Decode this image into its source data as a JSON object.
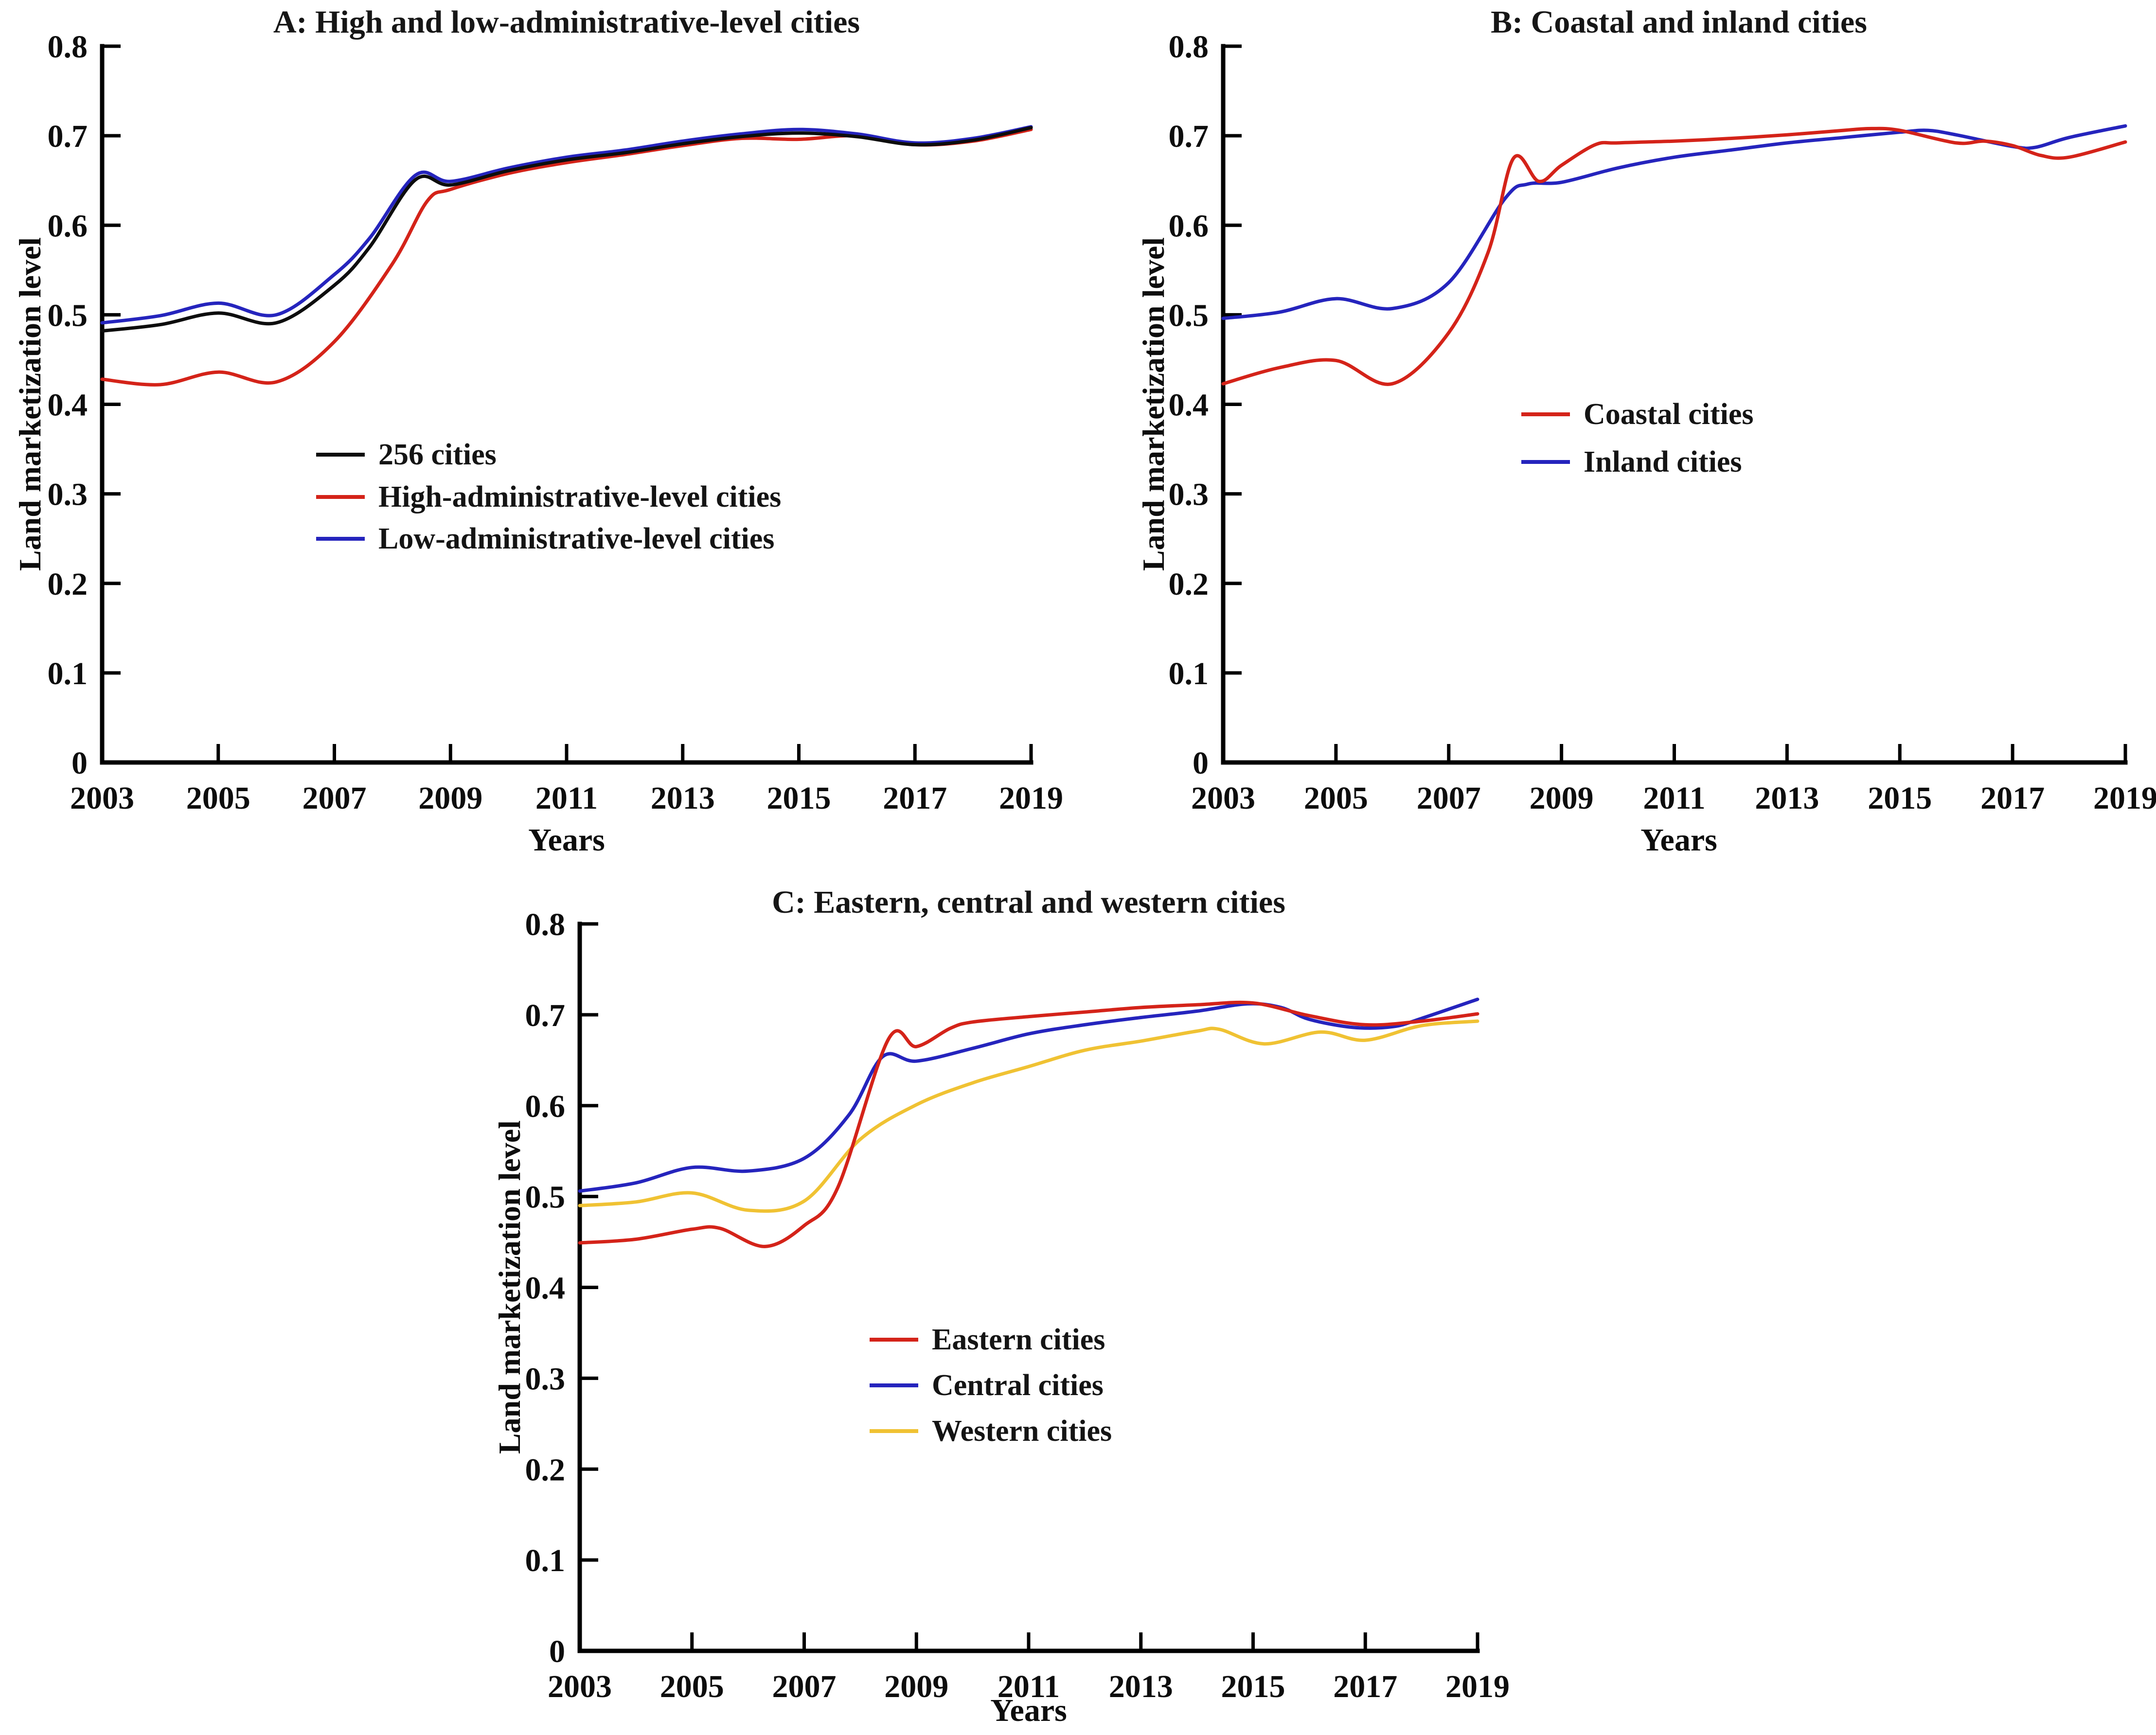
{
  "figure": {
    "background": "#ffffff",
    "axis_color": "#000000",
    "x_axis_label": "Years",
    "y_axis_label": "Land marketization level"
  },
  "chart_data": [
    {
      "type": "line",
      "panel": "A",
      "title": "A: High and low-administrative-level cities",
      "xlabel": "Years",
      "ylabel": "Land marketization level",
      "xlim": [
        2003,
        2019
      ],
      "ylim": [
        0,
        0.8
      ],
      "grid": false,
      "legend_position": "center-left",
      "x_ticks": [
        2003,
        2005,
        2007,
        2009,
        2011,
        2013,
        2015,
        2017,
        2019
      ],
      "x_tick_labels": [
        "2003",
        "2005",
        "2007",
        "2009",
        "2011",
        "2013",
        "2015",
        "2017",
        "2019"
      ],
      "y_ticks": [
        0,
        0.1,
        0.2,
        0.3,
        0.4,
        0.5,
        0.6,
        0.7,
        0.8
      ],
      "y_tick_labels": [
        "0",
        "0.1",
        "0.2",
        "0.3",
        "0.4",
        "0.5",
        "0.6",
        "0.7",
        "0.8"
      ],
      "series": [
        {
          "name": "256 cities",
          "color": "#0d0d0d",
          "points": [
            [
              2003,
              0.482
            ],
            [
              2004,
              0.489
            ],
            [
              2005,
              0.502
            ],
            [
              2006,
              0.491
            ],
            [
              2007,
              0.533
            ],
            [
              2007.6,
              0.575
            ],
            [
              2008.4,
              0.651
            ],
            [
              2009,
              0.645
            ],
            [
              2010,
              0.661
            ],
            [
              2011,
              0.673
            ],
            [
              2012,
              0.681
            ],
            [
              2013,
              0.691
            ],
            [
              2014,
              0.699
            ],
            [
              2015,
              0.703
            ],
            [
              2016,
              0.699
            ],
            [
              2017,
              0.69
            ],
            [
              2018,
              0.695
            ],
            [
              2019,
              0.709
            ]
          ]
        },
        {
          "name": "High-administrative-level cities",
          "color": "#d42319",
          "points": [
            [
              2003,
              0.428
            ],
            [
              2004,
              0.422
            ],
            [
              2005,
              0.436
            ],
            [
              2006,
              0.425
            ],
            [
              2007,
              0.47
            ],
            [
              2008,
              0.557
            ],
            [
              2008.6,
              0.627
            ],
            [
              2009,
              0.64
            ],
            [
              2010,
              0.658
            ],
            [
              2011,
              0.67
            ],
            [
              2012,
              0.679
            ],
            [
              2013,
              0.689
            ],
            [
              2014,
              0.697
            ],
            [
              2015,
              0.696
            ],
            [
              2016,
              0.7
            ],
            [
              2017,
              0.69
            ],
            [
              2018,
              0.694
            ],
            [
              2019,
              0.707
            ]
          ]
        },
        {
          "name": "Low-administrative-level cities",
          "color": "#2524bd",
          "points": [
            [
              2003,
              0.491
            ],
            [
              2004,
              0.499
            ],
            [
              2005,
              0.513
            ],
            [
              2006,
              0.5
            ],
            [
              2007,
              0.545
            ],
            [
              2007.6,
              0.585
            ],
            [
              2008.4,
              0.656
            ],
            [
              2009,
              0.649
            ],
            [
              2010,
              0.664
            ],
            [
              2011,
              0.676
            ],
            [
              2012,
              0.684
            ],
            [
              2013,
              0.694
            ],
            [
              2014,
              0.702
            ],
            [
              2015,
              0.707
            ],
            [
              2016,
              0.702
            ],
            [
              2017,
              0.692
            ],
            [
              2018,
              0.697
            ],
            [
              2019,
              0.71
            ]
          ]
        }
      ]
    },
    {
      "type": "line",
      "panel": "B",
      "title": "B: Coastal and inland cities",
      "xlabel": "Years",
      "ylabel": "Land marketization level",
      "xlim": [
        2003,
        2019
      ],
      "ylim": [
        0,
        0.8
      ],
      "grid": false,
      "legend_position": "center-left",
      "x_ticks": [
        2003,
        2005,
        2007,
        2009,
        2011,
        2013,
        2015,
        2017,
        2019
      ],
      "x_tick_labels": [
        "2003",
        "2005",
        "2007",
        "2009",
        "2011",
        "2013",
        "2015",
        "2017",
        "2019"
      ],
      "y_ticks": [
        0,
        0.1,
        0.2,
        0.3,
        0.4,
        0.5,
        0.6,
        0.7,
        0.8
      ],
      "y_tick_labels": [
        "0",
        "0.1",
        "0.2",
        "0.3",
        "0.4",
        "0.5",
        "0.6",
        "0.7",
        "0.8"
      ],
      "series": [
        {
          "name": "Coastal cities",
          "color": "#d42319",
          "points": [
            [
              2003,
              0.423
            ],
            [
              2004,
              0.441
            ],
            [
              2005,
              0.449
            ],
            [
              2006,
              0.423
            ],
            [
              2007,
              0.48
            ],
            [
              2007.7,
              0.57
            ],
            [
              2008.15,
              0.675
            ],
            [
              2008.6,
              0.649
            ],
            [
              2009,
              0.667
            ],
            [
              2009.6,
              0.69
            ],
            [
              2010,
              0.692
            ],
            [
              2011,
              0.694
            ],
            [
              2012,
              0.697
            ],
            [
              2013,
              0.701
            ],
            [
              2014,
              0.706
            ],
            [
              2014.5,
              0.708
            ],
            [
              2015,
              0.706
            ],
            [
              2016,
              0.692
            ],
            [
              2016.5,
              0.694
            ],
            [
              2017,
              0.689
            ],
            [
              2017.5,
              0.678
            ],
            [
              2018,
              0.676
            ],
            [
              2019,
              0.693
            ]
          ]
        },
        {
          "name": "Inland cities",
          "color": "#2524bd",
          "points": [
            [
              2003,
              0.496
            ],
            [
              2004,
              0.503
            ],
            [
              2005,
              0.518
            ],
            [
              2006,
              0.507
            ],
            [
              2007,
              0.536
            ],
            [
              2008,
              0.63
            ],
            [
              2008.4,
              0.646
            ],
            [
              2009,
              0.648
            ],
            [
              2010,
              0.664
            ],
            [
              2011,
              0.676
            ],
            [
              2012,
              0.684
            ],
            [
              2013,
              0.692
            ],
            [
              2014,
              0.698
            ],
            [
              2015,
              0.704
            ],
            [
              2015.5,
              0.706
            ],
            [
              2016,
              0.701
            ],
            [
              2017,
              0.688
            ],
            [
              2017.4,
              0.687
            ],
            [
              2018,
              0.698
            ],
            [
              2019,
              0.711
            ]
          ]
        }
      ]
    },
    {
      "type": "line",
      "panel": "C",
      "title": "C: Eastern, central and western cities",
      "xlabel": "Years",
      "ylabel": "Land marketization level",
      "xlim": [
        2003,
        2019
      ],
      "ylim": [
        0,
        0.8
      ],
      "grid": false,
      "legend_position": "center-left",
      "x_ticks": [
        2003,
        2005,
        2007,
        2009,
        2011,
        2013,
        2015,
        2017,
        2019
      ],
      "x_tick_labels": [
        "2003",
        "2005",
        "2007",
        "2009",
        "2011",
        "2013",
        "2015",
        "2017",
        "2019"
      ],
      "y_ticks": [
        0,
        0.1,
        0.2,
        0.3,
        0.4,
        0.5,
        0.6,
        0.7,
        0.8
      ],
      "y_tick_labels": [
        "0",
        "0.1",
        "0.2",
        "0.3",
        "0.4",
        "0.5",
        "0.6",
        "0.7",
        "0.8"
      ],
      "series": [
        {
          "name": "Eastern cities",
          "color": "#d42319",
          "points": [
            [
              2003,
              0.449
            ],
            [
              2004,
              0.453
            ],
            [
              2005,
              0.464
            ],
            [
              2005.5,
              0.465
            ],
            [
              2006.3,
              0.445
            ],
            [
              2007,
              0.468
            ],
            [
              2007.6,
              0.51
            ],
            [
              2008.5,
              0.673
            ],
            [
              2009,
              0.665
            ],
            [
              2009.6,
              0.685
            ],
            [
              2010,
              0.692
            ],
            [
              2011,
              0.698
            ],
            [
              2012,
              0.703
            ],
            [
              2013,
              0.708
            ],
            [
              2014,
              0.711
            ],
            [
              2015,
              0.713
            ],
            [
              2016,
              0.699
            ],
            [
              2017,
              0.689
            ],
            [
              2018,
              0.693
            ],
            [
              2019,
              0.701
            ]
          ]
        },
        {
          "name": "Central cities",
          "color": "#2524bd",
          "points": [
            [
              2003,
              0.506
            ],
            [
              2004,
              0.515
            ],
            [
              2005,
              0.532
            ],
            [
              2006,
              0.528
            ],
            [
              2007,
              0.542
            ],
            [
              2007.8,
              0.59
            ],
            [
              2008.4,
              0.654
            ],
            [
              2009,
              0.649
            ],
            [
              2010,
              0.663
            ],
            [
              2011,
              0.679
            ],
            [
              2012,
              0.689
            ],
            [
              2013,
              0.697
            ],
            [
              2014,
              0.704
            ],
            [
              2014.9,
              0.712
            ],
            [
              2015.5,
              0.708
            ],
            [
              2016,
              0.695
            ],
            [
              2016.8,
              0.686
            ],
            [
              2017.5,
              0.687
            ],
            [
              2018,
              0.696
            ],
            [
              2019,
              0.717
            ]
          ]
        },
        {
          "name": "Western cities",
          "color": "#f0c233",
          "points": [
            [
              2003,
              0.49
            ],
            [
              2004,
              0.494
            ],
            [
              2005,
              0.504
            ],
            [
              2006,
              0.485
            ],
            [
              2007,
              0.495
            ],
            [
              2008,
              0.563
            ],
            [
              2009,
              0.601
            ],
            [
              2010,
              0.625
            ],
            [
              2011,
              0.643
            ],
            [
              2012,
              0.661
            ],
            [
              2013,
              0.671
            ],
            [
              2014,
              0.682
            ],
            [
              2014.4,
              0.684
            ],
            [
              2015.2,
              0.668
            ],
            [
              2016.2,
              0.681
            ],
            [
              2017,
              0.672
            ],
            [
              2018,
              0.688
            ],
            [
              2019,
              0.693
            ]
          ]
        }
      ]
    }
  ]
}
